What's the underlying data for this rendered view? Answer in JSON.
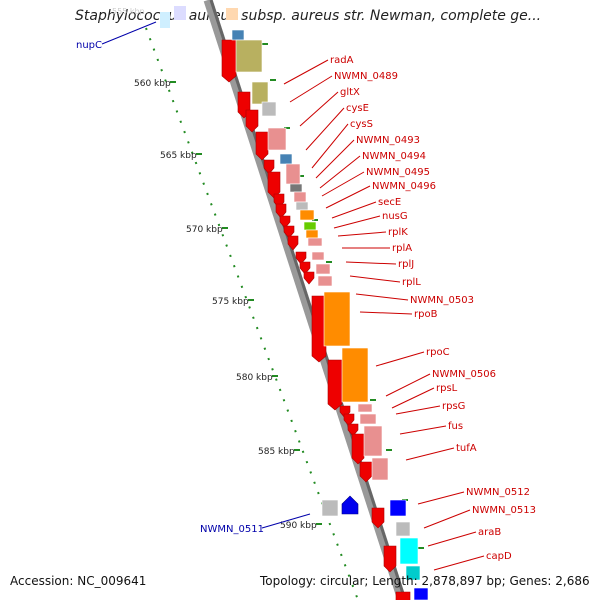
{
  "title": "Staphylococcus aureus subsp. aureus str. Newman, complete ge...",
  "footer": {
    "accession": "Accession: NC_009641",
    "topology": "Topology: circular; Length: 2,878,897 bp; Genes: 2,686"
  },
  "colors": {
    "forward_label": "#cc0000",
    "reverse_label": "#0000aa",
    "backbone": "#888888",
    "tick": "#228b22"
  },
  "axis": {
    "unit": "kbp",
    "ticks": [
      {
        "label": "560 kbp"
      },
      {
        "label": "565 kbp"
      },
      {
        "label": "570 kbp"
      },
      {
        "label": "575 kbp"
      },
      {
        "label": "580 kbp"
      },
      {
        "label": "585 kbp"
      },
      {
        "label": "590 kbp"
      }
    ]
  },
  "genes_forward": [
    {
      "name": "radA"
    },
    {
      "name": "NWMN_0489"
    },
    {
      "name": "gltX"
    },
    {
      "name": "cysE"
    },
    {
      "name": "cysS"
    },
    {
      "name": "NWMN_0493"
    },
    {
      "name": "NWMN_0494"
    },
    {
      "name": "NWMN_0495"
    },
    {
      "name": "NWMN_0496"
    },
    {
      "name": "secE"
    },
    {
      "name": "nusG"
    },
    {
      "name": "rplK"
    },
    {
      "name": "rplA"
    },
    {
      "name": "rplJ"
    },
    {
      "name": "rplL"
    },
    {
      "name": "NWMN_0503"
    },
    {
      "name": "rpoB"
    },
    {
      "name": "rpoC"
    },
    {
      "name": "NWMN_0506"
    },
    {
      "name": "rpsL"
    },
    {
      "name": "rpsG"
    },
    {
      "name": "fus"
    },
    {
      "name": "tufA"
    },
    {
      "name": "NWMN_0512"
    },
    {
      "name": "NWMN_0513"
    },
    {
      "name": "araB"
    },
    {
      "name": "capD"
    }
  ],
  "genes_reverse": [
    {
      "name": "nupC"
    },
    {
      "name": "NWMN_0511"
    }
  ]
}
